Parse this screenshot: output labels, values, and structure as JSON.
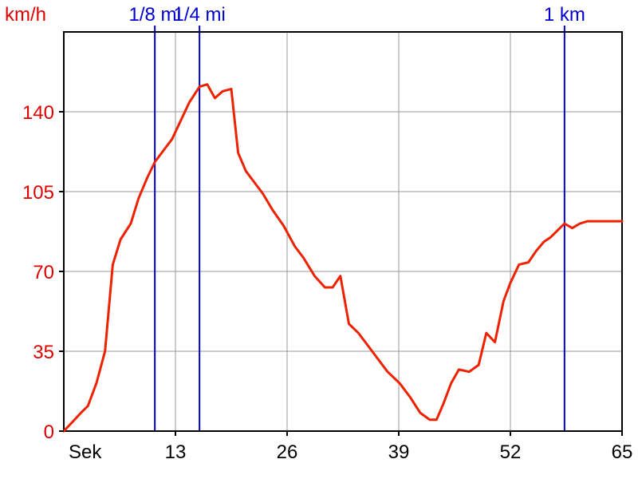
{
  "chart_data": {
    "type": "line",
    "ylabel": "km/h",
    "xlabel": "Sek",
    "xlim": [
      0,
      65
    ],
    "ylim": [
      0,
      175
    ],
    "x_ticks": [
      13,
      26,
      39,
      52,
      65
    ],
    "y_ticks": [
      0,
      35,
      70,
      105,
      140
    ],
    "grid": true,
    "colors": {
      "series": "#ee2200",
      "tick_label": "#dd0000",
      "grid": "#999999",
      "frame": "#000000",
      "marker": "#0000cc",
      "x_tick_label": "#000000"
    },
    "markers": [
      {
        "label": "1/8 mi",
        "x": 10.6
      },
      {
        "label": "1/4 mi",
        "x": 15.8
      },
      {
        "label": "1 km",
        "x": 58.3
      }
    ],
    "series": [
      {
        "x": [
          0,
          1,
          2,
          2.8,
          3.8,
          4.8,
          5.7,
          6.6,
          7.8,
          8.7,
          9.7,
          10.6,
          11.6,
          12.6,
          13.6,
          14.6,
          15.8,
          16.7,
          17.6,
          18.5,
          19.5,
          20.3,
          21.2,
          22.2,
          23.2,
          24.3,
          25.6,
          26.9,
          27.9,
          29.2,
          30.4,
          31.3,
          32.2,
          33.2,
          34.3,
          35.3,
          36.5,
          37.7,
          39.1,
          40.3,
          41.5,
          42.6,
          43.4,
          44.2,
          45.1,
          46.0,
          47.2,
          48.3,
          49.2,
          50.2,
          51.2,
          52.0,
          53.0,
          54.1,
          55.0,
          55.9,
          56.7,
          57.5,
          58.3,
          59.2,
          60.1,
          61.0,
          62.1,
          63.2,
          64.2,
          65.0
        ],
        "y": [
          0,
          4,
          8,
          11,
          21,
          35,
          73,
          84,
          91,
          102,
          111,
          118,
          123,
          128,
          136,
          144,
          151,
          152,
          146,
          149,
          150,
          122,
          114,
          109,
          104,
          97,
          90,
          81,
          76,
          68,
          63,
          63,
          68,
          47,
          43,
          38,
          32,
          26,
          21,
          15,
          8,
          5,
          5,
          12,
          21,
          27,
          26,
          29,
          43,
          39,
          57,
          65,
          73,
          74,
          79,
          83,
          85,
          88,
          91,
          89,
          91,
          92,
          92,
          92,
          92,
          92
        ]
      }
    ]
  }
}
